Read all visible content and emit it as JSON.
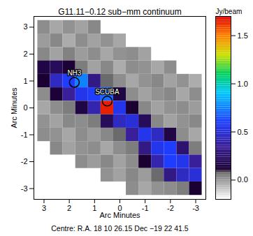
{
  "chart_data": {
    "type": "heatmap",
    "title": "G11.11−0.12 sub−mm continuum",
    "x_label": "Arc Minutes",
    "y_label": "Arc Minutes",
    "caption": "Centre: R.A. 18 10 26.15 Dec −19 22 41.5",
    "x": [
      3,
      2.5,
      2,
      1.5,
      1,
      0.5,
      0,
      -0.5,
      -1,
      -1.5,
      -2,
      -2.5,
      -3
    ],
    "y": [
      3,
      2.5,
      2,
      1.5,
      1,
      0.5,
      0,
      -0.5,
      -1,
      -1.5,
      -2,
      -2.5,
      -3
    ],
    "cells": [
      [
        0.02,
        -0.03,
        0.01,
        -0.02,
        0.03,
        null,
        null,
        null,
        null,
        null,
        null,
        null,
        null
      ],
      [
        -0.01,
        0.03,
        -0.04,
        0.02,
        -0.02,
        0.01,
        -0.03,
        null,
        null,
        null,
        null,
        null,
        null
      ],
      [
        0.03,
        -0.02,
        0.04,
        -0.01,
        0.02,
        -0.03,
        0.01,
        0.02,
        -0.02,
        null,
        null,
        null,
        null
      ],
      [
        0.15,
        0.2,
        0.12,
        0.05,
        -0.02,
        0.03,
        -0.04,
        0.02,
        0.01,
        -0.03,
        0.02,
        null,
        null
      ],
      [
        0.1,
        0.45,
        0.6,
        0.75,
        0.3,
        0.08,
        0.02,
        -0.03,
        0.01,
        0.03,
        -0.02,
        0.01,
        -0.04
      ],
      [
        0.02,
        0.12,
        0.35,
        0.55,
        0.6,
        0.7,
        0.15,
        0.02,
        -0.02,
        0.01,
        0.03,
        -0.03,
        0.02
      ],
      [
        -0.03,
        0.02,
        0.05,
        0.15,
        0.4,
        1.65,
        0.55,
        0.1,
        0.03,
        -0.02,
        0.01,
        0.02,
        -0.01
      ],
      [
        0.01,
        -0.02,
        0.03,
        0.02,
        0.05,
        0.2,
        0.45,
        0.5,
        0.2,
        0.03,
        -0.02,
        0.01,
        0.03
      ],
      [
        0.02,
        0.01,
        -0.03,
        0.02,
        -0.01,
        0.03,
        0.08,
        0.35,
        0.55,
        0.45,
        0.15,
        0.02,
        -0.03
      ],
      [
        null,
        0.03,
        -0.02,
        0.01,
        0.02,
        -0.03,
        0.02,
        0.05,
        0.3,
        0.55,
        0.6,
        0.25,
        0.05
      ],
      [
        null,
        null,
        null,
        0.02,
        -0.01,
        0.03,
        -0.02,
        0.02,
        0.1,
        0.4,
        0.6,
        0.55,
        0.35
      ],
      [
        null,
        null,
        null,
        null,
        null,
        0.01,
        -0.02,
        0.03,
        -0.01,
        0.08,
        0.3,
        0.45,
        0.5
      ],
      [
        null,
        null,
        null,
        null,
        null,
        null,
        null,
        0.02,
        -0.03,
        0.01,
        0.02,
        0.05,
        0.1
      ]
    ],
    "xlim": [
      3.4,
      -3.4
    ],
    "ylim": [
      -3.4,
      3.4
    ],
    "xticks": [
      3,
      2,
      1,
      0,
      -1,
      -2,
      -3
    ],
    "yticks": [
      -3,
      -2,
      -1,
      0,
      1,
      2,
      3
    ],
    "colorbar": {
      "label": "Jy/beam",
      "range": [
        -0.2,
        1.7
      ],
      "ticks": [
        {
          "value": 0,
          "label": "0.0"
        },
        {
          "value": 0.5,
          "label": "0.5"
        },
        {
          "value": 1,
          "label": "1.0"
        },
        {
          "value": 1.5,
          "label": "1.5"
        }
      ]
    },
    "annotations": [
      {
        "text": "NH3",
        "x": 1.8,
        "y": 0.95
      },
      {
        "text": "SCUBA",
        "x": 0.5,
        "y": 0.25
      }
    ]
  }
}
